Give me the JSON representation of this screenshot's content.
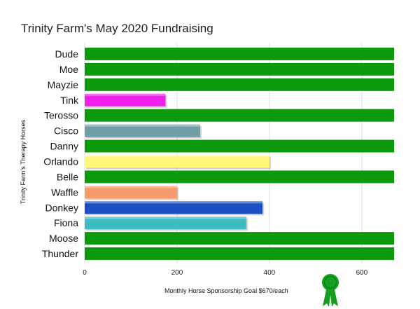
{
  "chart_data": {
    "type": "bar",
    "orientation": "horizontal",
    "title": "Trinity Farm's May 2020 Fundraising",
    "xlabel": "Monthly Horse Sponsorship   Goal $670/each",
    "ylabel": "Trinity Farm's Therapy Horses",
    "xlim": [
      0,
      670
    ],
    "xticks": [
      0,
      200,
      400,
      600
    ],
    "grid": "vertical",
    "categories": [
      "Dude",
      "Moe",
      "Mayzie",
      "Tink",
      "Terosso",
      "Cisco",
      "Danny",
      "Orlando",
      "Belle",
      "Waffle",
      "Donkey",
      "Fiona",
      "Moose",
      "Thunder"
    ],
    "values": [
      670,
      670,
      670,
      175,
      670,
      250,
      670,
      400,
      670,
      200,
      385,
      350,
      670,
      670
    ],
    "colors": [
      "#0c9a0c",
      "#0c9a0c",
      "#0c9a0c",
      "#ef20ea",
      "#0c9a0c",
      "#6f9ea6",
      "#0c9a0c",
      "#fbf877",
      "#0c9a0c",
      "#f79a6a",
      "#1d4fc4",
      "#3fbcc2",
      "#0c9a0c",
      "#0c9a0c"
    ],
    "goal_badge": "ribbon-icon",
    "goal_badge_color": "#14a01e"
  }
}
